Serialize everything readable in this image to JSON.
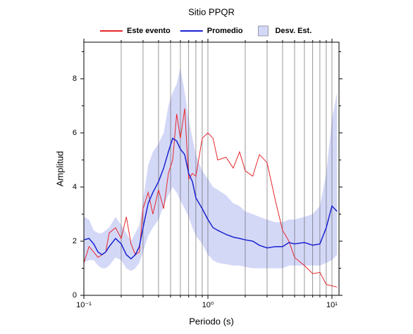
{
  "chart_data": {
    "type": "line",
    "title": "Sitio PPQR",
    "xlabel": "Periodo (s)",
    "ylabel": "Amplitud",
    "xscale": "log",
    "xgrid": true,
    "legend": "top",
    "xlim": [
      0.1,
      11.4
    ],
    "ylim": [
      0,
      9.35
    ],
    "xticks": [
      {
        "value": 0.1,
        "label": "10⁻¹"
      },
      {
        "value": 1,
        "label": "10⁰"
      },
      {
        "value": 10,
        "label": "10¹"
      }
    ],
    "xminorticks": [
      0.2,
      0.3,
      0.4,
      0.5,
      0.6,
      0.7,
      0.8,
      0.9,
      2,
      3,
      4,
      5,
      6,
      7,
      8,
      9
    ],
    "yticks": [
      0,
      2,
      4,
      6,
      8
    ],
    "yminorticks": [
      1,
      3,
      5,
      7,
      9
    ],
    "x": [
      0.1,
      0.11,
      0.12,
      0.13,
      0.14,
      0.15,
      0.16,
      0.18,
      0.2,
      0.22,
      0.24,
      0.26,
      0.28,
      0.3,
      0.33,
      0.36,
      0.4,
      0.44,
      0.48,
      0.52,
      0.56,
      0.6,
      0.65,
      0.7,
      0.75,
      0.8,
      0.9,
      1.0,
      1.1,
      1.2,
      1.4,
      1.6,
      1.8,
      2.0,
      2.3,
      2.6,
      3.0,
      3.5,
      4.0,
      4.5,
      5,
      6,
      7,
      8,
      9,
      10,
      11
    ],
    "band": {
      "name": "Desv. Est.",
      "color": "#d4d8f7",
      "upper": [
        2.9,
        2.8,
        2.4,
        2.3,
        2.3,
        2.4,
        2.5,
        2.9,
        2.6,
        2.3,
        2.0,
        2.3,
        2.6,
        3.5,
        4.8,
        5.3,
        5.6,
        6.0,
        7.0,
        7.5,
        7.8,
        8.4,
        7.5,
        6.5,
        5.8,
        5.2,
        4.6,
        4.3,
        4.0,
        3.9,
        3.7,
        3.4,
        3.3,
        3.1,
        3.0,
        2.9,
        2.8,
        2.7,
        2.7,
        2.8,
        2.8,
        2.9,
        3.0,
        3.3,
        4.5,
        6.5,
        7.5
      ],
      "lower": [
        1.2,
        1.3,
        1.3,
        1.1,
        1.0,
        1.0,
        1.1,
        1.4,
        1.3,
        1.0,
        0.9,
        1.0,
        1.2,
        1.6,
        2.2,
        2.5,
        2.8,
        3.3,
        3.7,
        4.0,
        3.8,
        3.5,
        3.2,
        2.9,
        2.5,
        2.2,
        1.9,
        1.5,
        1.3,
        1.2,
        1.15,
        1.1,
        1.1,
        1.05,
        1.0,
        1.0,
        1.0,
        1.0,
        1.0,
        1.1,
        1.1,
        1.1,
        1.1,
        1.1,
        1.2,
        1.3,
        1.5
      ]
    },
    "series": [
      {
        "name": "Este evento",
        "color": "#e8262b",
        "values": [
          1.2,
          1.8,
          1.6,
          1.4,
          1.5,
          1.6,
          2.3,
          2.5,
          2.1,
          2.9,
          1.9,
          1.5,
          1.6,
          3.2,
          3.8,
          3.0,
          3.9,
          3.2,
          4.5,
          5.0,
          6.7,
          5.8,
          6.9,
          4.3,
          4.5,
          4.4,
          5.8,
          6.0,
          5.8,
          5.0,
          5.1,
          4.7,
          5.3,
          4.6,
          4.4,
          5.2,
          4.9,
          3.5,
          2.4,
          2.0,
          1.4,
          1.1,
          0.8,
          0.85,
          0.4,
          0.35,
          0.3
        ]
      },
      {
        "name": "Promedio",
        "color": "#1a22d0",
        "values": [
          2.05,
          2.1,
          1.9,
          1.6,
          1.5,
          1.6,
          1.8,
          2.1,
          1.9,
          1.5,
          1.35,
          1.5,
          1.8,
          2.5,
          3.4,
          3.8,
          4.2,
          4.7,
          5.3,
          5.8,
          5.7,
          5.4,
          5.2,
          4.5,
          4.2,
          3.6,
          3.2,
          2.8,
          2.5,
          2.4,
          2.25,
          2.15,
          2.1,
          2.05,
          2.0,
          1.85,
          1.75,
          1.8,
          1.8,
          1.95,
          1.9,
          1.95,
          1.85,
          1.9,
          2.5,
          3.3,
          3.1
        ]
      }
    ]
  }
}
